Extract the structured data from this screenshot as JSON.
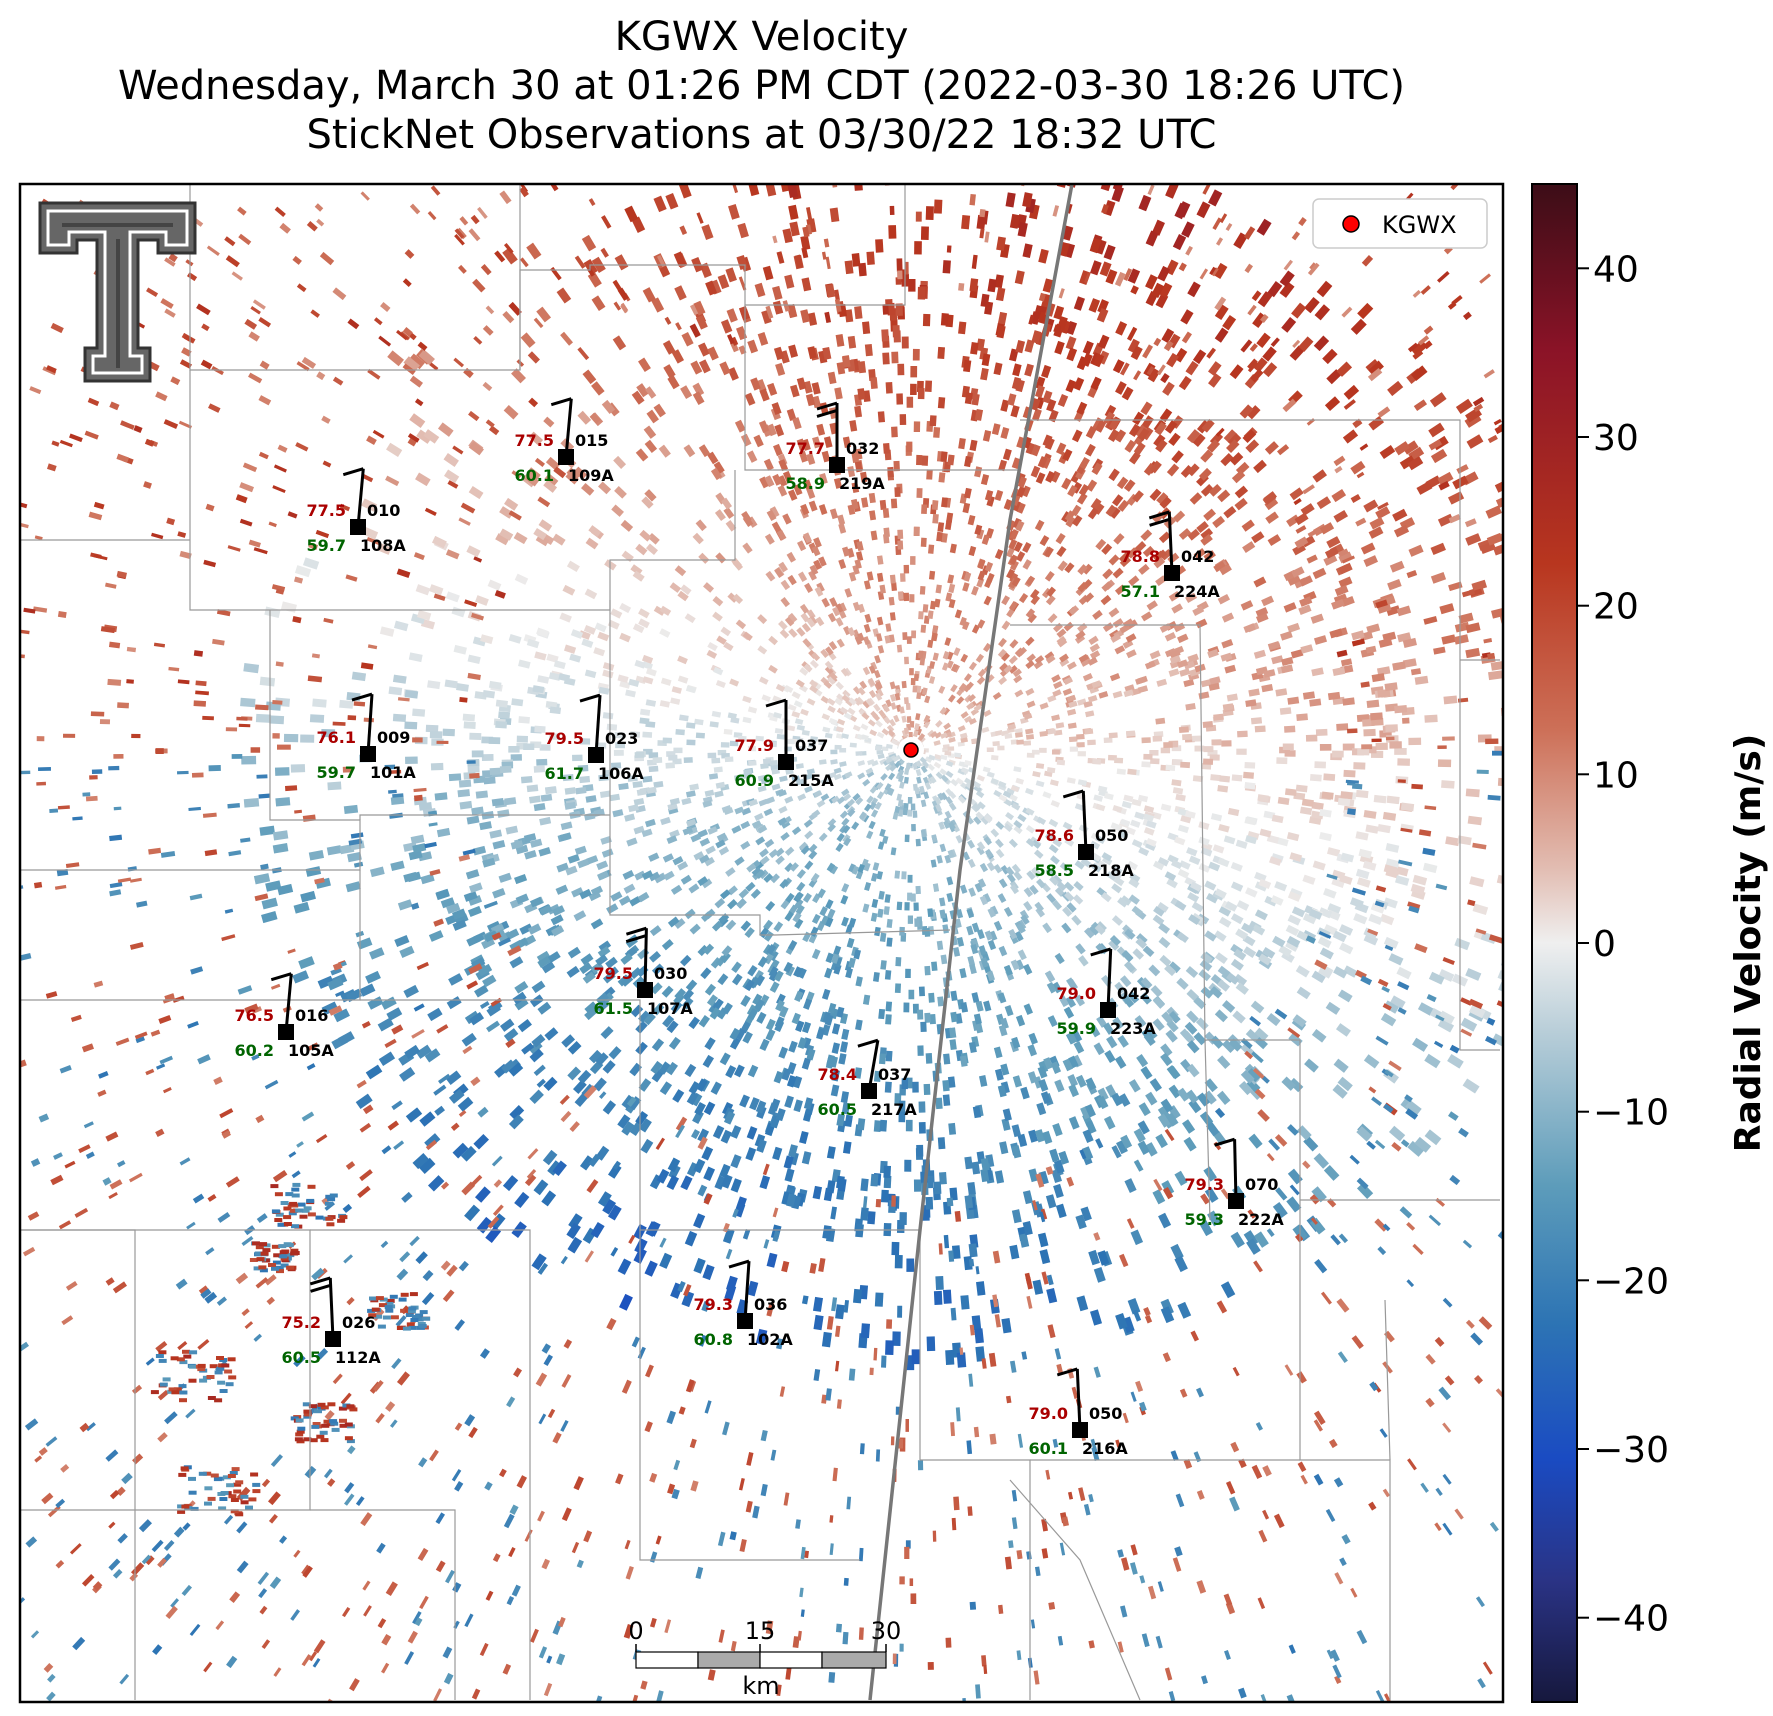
{
  "title": {
    "line1": "KGWX Velocity",
    "line2": "Wednesday, March 30 at 01:26 PM CDT (2022-03-30 18:26 UTC)",
    "line3": "StickNet Observations at 03/30/22 18:32 UTC"
  },
  "legend": {
    "label": "KGWX",
    "marker_color": "#ff0000"
  },
  "colorbar": {
    "label": "Radial Velocity (m/s)",
    "range": [
      -45,
      45
    ],
    "ticks": [
      40,
      30,
      20,
      10,
      0,
      -10,
      -20,
      -30,
      -40
    ],
    "tick_labels": [
      "40",
      "30",
      "20",
      "10",
      "0",
      "−10",
      "−20",
      "−30",
      "−40"
    ],
    "colors": [
      "#4a0f18",
      "#8a1328",
      "#b5351f",
      "#cc6d55",
      "#ddb3a6",
      "#eeeeee",
      "#aac4d1",
      "#5a9ab8",
      "#2a6fb0",
      "#1b4fc0",
      "#2a2e80",
      "#1a1a40"
    ]
  },
  "scale_bar": {
    "labels": [
      "0",
      "15",
      "30"
    ],
    "unit": "km"
  },
  "logo": {
    "name": "Texas Tech Double T"
  },
  "stations": [
    {
      "id": "108A",
      "temp": "77.5",
      "dew": "59.7",
      "dir": "010",
      "wind_dir_deg": 160,
      "barbs": 1
    },
    {
      "id": "109A",
      "temp": "77.5",
      "dew": "60.1",
      "dir": "015",
      "wind_dir_deg": 160,
      "barbs": 1
    },
    {
      "id": "219A",
      "temp": "77.7",
      "dew": "58.9",
      "dir": "032",
      "wind_dir_deg": 180,
      "barbs": 2
    },
    {
      "id": "224A",
      "temp": "78.8",
      "dew": "57.1",
      "dir": "042",
      "wind_dir_deg": 190,
      "barbs": 2
    },
    {
      "id": "101A",
      "temp": "76.1",
      "dew": "59.7",
      "dir": "009",
      "wind_dir_deg": 165,
      "barbs": 1
    },
    {
      "id": "106A",
      "temp": "79.5",
      "dew": "61.7",
      "dir": "023",
      "wind_dir_deg": 165,
      "barbs": 1
    },
    {
      "id": "215A",
      "temp": "77.9",
      "dew": "60.9",
      "dir": "037",
      "wind_dir_deg": 180,
      "barbs": 1
    },
    {
      "id": "218A",
      "temp": "78.6",
      "dew": "58.5",
      "dir": "050",
      "wind_dir_deg": 190,
      "barbs": 1
    },
    {
      "id": "107A",
      "temp": "79.5",
      "dew": "61.5",
      "dir": "030",
      "wind_dir_deg": 175,
      "barbs": 2
    },
    {
      "id": "105A",
      "temp": "76.5",
      "dew": "60.2",
      "dir": "016",
      "wind_dir_deg": 160,
      "barbs": 1
    },
    {
      "id": "223A",
      "temp": "79.0",
      "dew": "59.9",
      "dir": "042",
      "wind_dir_deg": 170,
      "barbs": 1
    },
    {
      "id": "217A",
      "temp": "78.4",
      "dew": "60.5",
      "dir": "037",
      "wind_dir_deg": 145,
      "barbs": 1
    },
    {
      "id": "222A",
      "temp": "79.3",
      "dew": "59.3",
      "dir": "070",
      "wind_dir_deg": 185,
      "barbs": 1
    },
    {
      "id": "112A",
      "temp": "75.2",
      "dew": "60.5",
      "dir": "026",
      "wind_dir_deg": 190,
      "barbs": 2
    },
    {
      "id": "102A",
      "temp": "79.3",
      "dew": "60.8",
      "dir": "036",
      "wind_dir_deg": 165,
      "barbs": 1
    },
    {
      "id": "216A",
      "temp": "79.0",
      "dew": "60.1",
      "dir": "050",
      "wind_dir_deg": 190,
      "barbs": 1
    }
  ]
}
